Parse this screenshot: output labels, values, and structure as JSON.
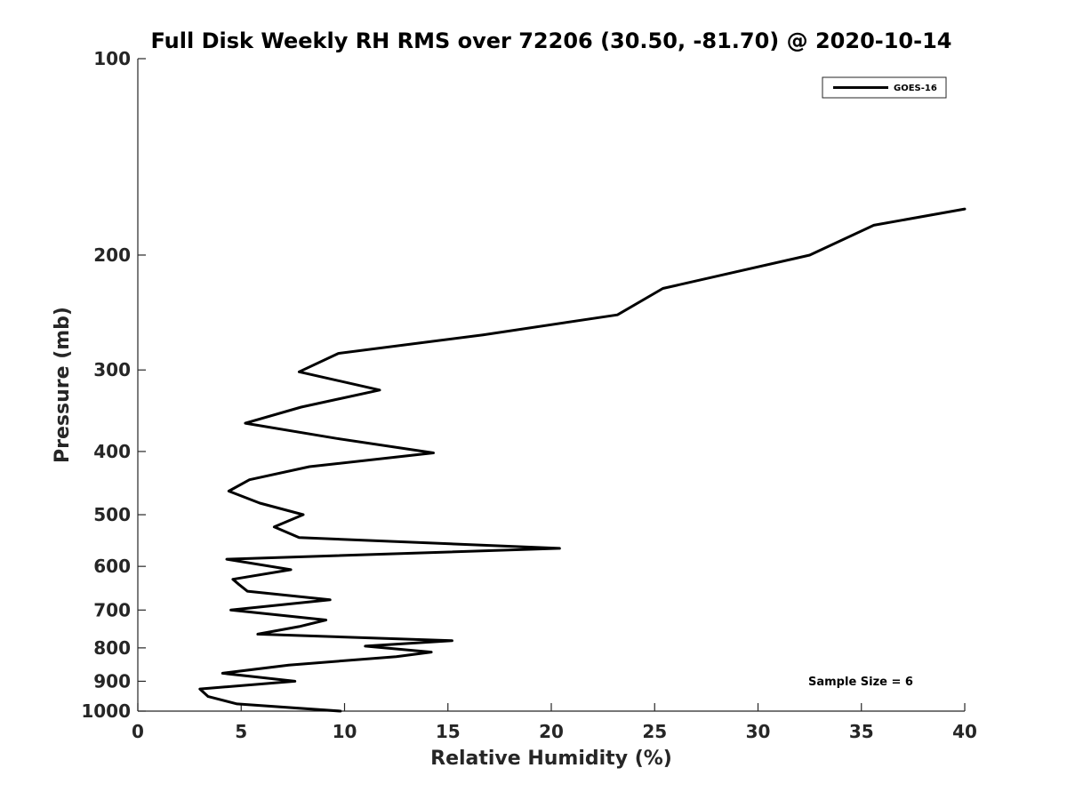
{
  "chart_data": {
    "type": "line",
    "title": "Full Disk Weekly RH RMS over 72206 (30.50, -81.70) @ 2020-10-14",
    "xlabel": "Relative Humidity (%)",
    "ylabel": "Pressure (mb)",
    "xlim": [
      0,
      40
    ],
    "ylim": [
      100,
      1000
    ],
    "y_scale": "log",
    "y_reversed": true,
    "grid": false,
    "legend_position": "top-right",
    "x_ticks": [
      "0",
      "5",
      "10",
      "15",
      "20",
      "25",
      "30",
      "35",
      "40"
    ],
    "y_ticks": [
      "100",
      "200",
      "300",
      "400",
      "500",
      "600",
      "700",
      "800",
      "900",
      "1000"
    ],
    "annotation": "Sample Size = 6",
    "series": [
      {
        "name": "GOES-16",
        "color": "#000000",
        "points": [
          [
            9.8,
            1000
          ],
          [
            4.8,
            975
          ],
          [
            3.4,
            950
          ],
          [
            3.0,
            925
          ],
          [
            7.6,
            900
          ],
          [
            4.1,
            875
          ],
          [
            7.3,
            850
          ],
          [
            12.5,
            825
          ],
          [
            14.2,
            812
          ],
          [
            11.0,
            795
          ],
          [
            15.2,
            780
          ],
          [
            5.8,
            762
          ],
          [
            7.8,
            742
          ],
          [
            9.1,
            725
          ],
          [
            4.5,
            700
          ],
          [
            9.3,
            675
          ],
          [
            5.3,
            655
          ],
          [
            4.9,
            640
          ],
          [
            4.6,
            628
          ],
          [
            7.4,
            607
          ],
          [
            4.3,
            585
          ],
          [
            20.4,
            563
          ],
          [
            7.8,
            542
          ],
          [
            6.6,
            522
          ],
          [
            8.0,
            500
          ],
          [
            5.9,
            480
          ],
          [
            4.4,
            460
          ],
          [
            5.4,
            442
          ],
          [
            8.3,
            422
          ],
          [
            14.3,
            402
          ],
          [
            9.6,
            382
          ],
          [
            5.2,
            362
          ],
          [
            7.9,
            342
          ],
          [
            11.7,
            322
          ],
          [
            7.8,
            302
          ],
          [
            9.7,
            283
          ],
          [
            16.7,
            265
          ],
          [
            23.2,
            247
          ],
          [
            25.4,
            225
          ],
          [
            32.5,
            200
          ],
          [
            35.6,
            180
          ],
          [
            40.0,
            170
          ]
        ]
      }
    ]
  }
}
